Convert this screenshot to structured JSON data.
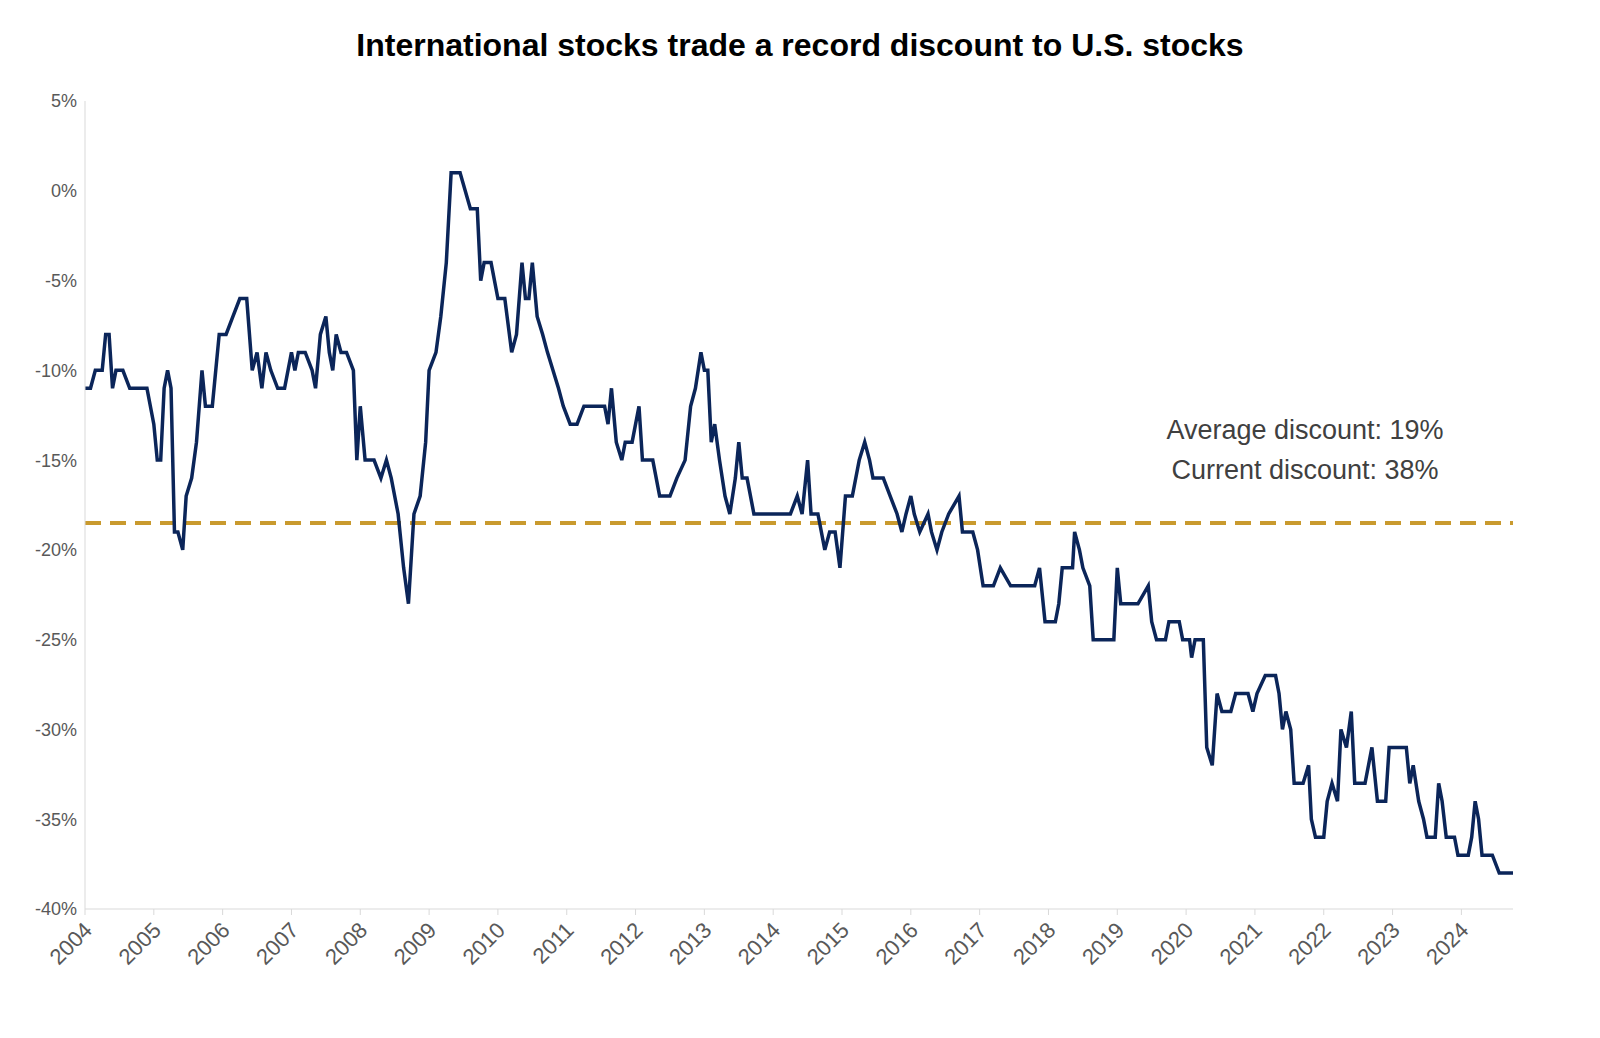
{
  "chart_data": {
    "type": "line",
    "title": "International stocks trade a record discount to U.S. stocks",
    "annotations": [
      "Average discount: 19%",
      "Current discount: 38%"
    ],
    "x": [
      2004.0,
      2004.08,
      2004.15,
      2004.25,
      2004.3,
      2004.35,
      2004.4,
      2004.45,
      2004.55,
      2004.65,
      2004.75,
      2004.9,
      2005.0,
      2005.05,
      2005.1,
      2005.15,
      2005.2,
      2005.25,
      2005.3,
      2005.35,
      2005.42,
      2005.47,
      2005.55,
      2005.62,
      2005.7,
      2005.75,
      2005.85,
      2005.95,
      2006.05,
      2006.15,
      2006.25,
      2006.35,
      2006.43,
      2006.5,
      2006.57,
      2006.63,
      2006.7,
      2006.8,
      2006.9,
      2007.0,
      2007.05,
      2007.1,
      2007.2,
      2007.3,
      2007.35,
      2007.42,
      2007.5,
      2007.55,
      2007.6,
      2007.65,
      2007.72,
      2007.8,
      2007.9,
      2007.95,
      2008.0,
      2008.07,
      2008.2,
      2008.3,
      2008.38,
      2008.45,
      2008.55,
      2008.63,
      2008.7,
      2008.78,
      2008.87,
      2008.95,
      2009.0,
      2009.1,
      2009.17,
      2009.25,
      2009.32,
      2009.45,
      2009.6,
      2009.7,
      2009.75,
      2009.8,
      2009.9,
      2010.0,
      2010.1,
      2010.2,
      2010.27,
      2010.35,
      2010.4,
      2010.45,
      2010.5,
      2010.57,
      2010.65,
      2010.72,
      2010.8,
      2010.88,
      2010.95,
      2011.05,
      2011.15,
      2011.25,
      2011.4,
      2011.55,
      2011.6,
      2011.65,
      2011.72,
      2011.8,
      2011.85,
      2011.95,
      2012.05,
      2012.1,
      2012.25,
      2012.35,
      2012.5,
      2012.6,
      2012.72,
      2012.8,
      2012.87,
      2012.95,
      2013.0,
      2013.05,
      2013.1,
      2013.15,
      2013.22,
      2013.3,
      2013.37,
      2013.45,
      2013.5,
      2013.55,
      2013.62,
      2013.72,
      2013.9,
      2014.1,
      2014.25,
      2014.35,
      2014.42,
      2014.5,
      2014.55,
      2014.65,
      2014.75,
      2014.82,
      2014.9,
      2014.97,
      2015.05,
      2015.15,
      2015.25,
      2015.33,
      2015.4,
      2015.45,
      2015.6,
      2015.7,
      2015.8,
      2015.87,
      2015.93,
      2016.0,
      2016.05,
      2016.13,
      2016.25,
      2016.3,
      2016.38,
      2016.45,
      2016.55,
      2016.7,
      2016.75,
      2016.9,
      2016.97,
      2017.05,
      2017.2,
      2017.3,
      2017.45,
      2017.8,
      2017.87,
      2017.95,
      2018.1,
      2018.15,
      2018.2,
      2018.35,
      2018.38,
      2018.45,
      2018.5,
      2018.6,
      2018.65,
      2018.8,
      2018.95,
      2019.0,
      2019.05,
      2019.3,
      2019.45,
      2019.5,
      2019.57,
      2019.7,
      2019.75,
      2019.9,
      2019.95,
      2020.05,
      2020.08,
      2020.13,
      2020.25,
      2020.3,
      2020.38,
      2020.45,
      2020.52,
      2020.65,
      2020.72,
      2020.9,
      2020.97,
      2021.03,
      2021.15,
      2021.3,
      2021.35,
      2021.4,
      2021.45,
      2021.52,
      2021.57,
      2021.7,
      2021.78,
      2021.82,
      2021.88,
      2022.0,
      2022.05,
      2022.12,
      2022.2,
      2022.25,
      2022.33,
      2022.4,
      2022.45,
      2022.6,
      2022.7,
      2022.78,
      2022.9,
      2022.95,
      2023.2,
      2023.25,
      2023.3,
      2023.38,
      2023.45,
      2023.5,
      2023.62,
      2023.67,
      2023.72,
      2023.78,
      2023.9,
      2023.95,
      2024.1,
      2024.15,
      2024.2,
      2024.25,
      2024.3,
      2024.45,
      2024.55,
      2024.75
    ],
    "values": [
      -11,
      -11,
      -10,
      -10,
      -8,
      -8,
      -11,
      -10,
      -10,
      -11,
      -11,
      -11,
      -13,
      -15,
      -15,
      -11,
      -10,
      -11,
      -19,
      -19,
      -20,
      -17,
      -16,
      -14,
      -10,
      -12,
      -12,
      -8,
      -8,
      -7,
      -6,
      -6,
      -10,
      -9,
      -11,
      -9,
      -10,
      -11,
      -11,
      -9,
      -10,
      -9,
      -9,
      -10,
      -11,
      -8,
      -7,
      -9,
      -10,
      -8,
      -9,
      -9,
      -10,
      -15,
      -12,
      -15,
      -15,
      -16,
      -15,
      -16,
      -18,
      -21,
      -23,
      -18,
      -17,
      -14,
      -10,
      -9,
      -7,
      -4,
      1,
      1,
      -1,
      -1,
      -5,
      -4,
      -4,
      -6,
      -6,
      -9,
      -8,
      -4,
      -6,
      -6,
      -4,
      -7,
      -8,
      -9,
      -10,
      -11,
      -12,
      -13,
      -13,
      -12,
      -12,
      -12,
      -13,
      -11,
      -14,
      -15,
      -14,
      -14,
      -12,
      -15,
      -15,
      -17,
      -17,
      -16,
      -15,
      -12,
      -11,
      -9,
      -10,
      -10,
      -14,
      -13,
      -15,
      -17,
      -18,
      -16,
      -14,
      -16,
      -16,
      -18,
      -18,
      -18,
      -18,
      -17,
      -18,
      -15,
      -18,
      -18,
      -20,
      -19,
      -19,
      -21,
      -17,
      -17,
      -15,
      -14,
      -15,
      -16,
      -16,
      -17,
      -18,
      -19,
      -18,
      -17,
      -18,
      -19,
      -18,
      -19,
      -20,
      -19,
      -18,
      -17,
      -19,
      -19,
      -20,
      -22,
      -22,
      -21,
      -22,
      -22,
      -21,
      -24,
      -24,
      -23,
      -21,
      -21,
      -19,
      -20,
      -21,
      -22,
      -25,
      -25,
      -25,
      -21,
      -23,
      -23,
      -22,
      -24,
      -25,
      -25,
      -24,
      -24,
      -25,
      -25,
      -26,
      -25,
      -25,
      -31,
      -32,
      -28,
      -29,
      -29,
      -28,
      -28,
      -29,
      -28,
      -27,
      -27,
      -28,
      -30,
      -29,
      -30,
      -33,
      -33,
      -32,
      -35,
      -36,
      -36,
      -34,
      -33,
      -34,
      -30,
      -31,
      -29,
      -33,
      -33,
      -31,
      -34,
      -34,
      -31,
      -31,
      -33,
      -32,
      -34,
      -35,
      -36,
      -36,
      -33,
      -34,
      -36,
      -36,
      -37,
      -37,
      -36,
      -34,
      -35,
      -37,
      -37,
      -38,
      -38
    ],
    "color": "#0b2559",
    "average_line": {
      "value": -18.5,
      "color": "#c99a2e",
      "line_style": "dashed"
    },
    "xlim": [
      2004,
      2024.75
    ],
    "xticks": [
      2004,
      2005,
      2006,
      2007,
      2008,
      2009,
      2010,
      2011,
      2012,
      2013,
      2014,
      2015,
      2016,
      2017,
      2018,
      2019,
      2020,
      2021,
      2022,
      2023,
      2024
    ],
    "ylim": [
      -40,
      5
    ],
    "yticks": [
      {
        "value": -40,
        "label": "-40%"
      },
      {
        "value": -35,
        "label": "-35%"
      },
      {
        "value": -30,
        "label": "-30%"
      },
      {
        "value": -25,
        "label": "-25%"
      },
      {
        "value": -20,
        "label": "-20%"
      },
      {
        "value": -15,
        "label": "-15%"
      },
      {
        "value": -10,
        "label": "-10%"
      },
      {
        "value": -5,
        "label": "-5%"
      },
      {
        "value": 0,
        "label": "0%"
      },
      {
        "value": 5,
        "label": "5%"
      }
    ],
    "grid": false
  }
}
